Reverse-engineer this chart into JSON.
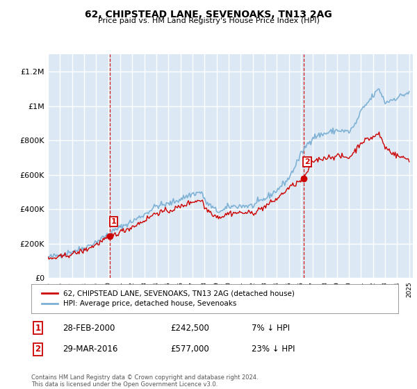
{
  "title": "62, CHIPSTEAD LANE, SEVENOAKS, TN13 2AG",
  "subtitle": "Price paid vs. HM Land Registry's House Price Index (HPI)",
  "ylabel_ticks": [
    "£0",
    "£200K",
    "£400K",
    "£600K",
    "£800K",
    "£1M",
    "£1.2M"
  ],
  "ytick_values": [
    0,
    200000,
    400000,
    600000,
    800000,
    1000000,
    1200000
  ],
  "ylim": [
    0,
    1300000
  ],
  "sale1": {
    "date_label": "28-FEB-2000",
    "price": 242500,
    "hpi_diff": "7% ↓ HPI",
    "marker_year": 2000.15,
    "label": "1"
  },
  "sale2": {
    "date_label": "29-MAR-2016",
    "price": 577000,
    "hpi_diff": "23% ↓ HPI",
    "marker_year": 2016.23,
    "label": "2"
  },
  "legend_line1": "62, CHIPSTEAD LANE, SEVENOAKS, TN13 2AG (detached house)",
  "legend_line2": "HPI: Average price, detached house, Sevenoaks",
  "footer": "Contains HM Land Registry data © Crown copyright and database right 2024.\nThis data is licensed under the Open Government Licence v3.0.",
  "table": [
    {
      "label": "1",
      "date": "28-FEB-2000",
      "price": "£242,500",
      "hpi": "7% ↓ HPI"
    },
    {
      "label": "2",
      "date": "29-MAR-2016",
      "price": "£577,000",
      "hpi": "23% ↓ HPI"
    }
  ],
  "hpi_color": "#7bafd4",
  "sale_color": "#cc0000",
  "bg_color": "#dce9f5",
  "grid_color": "#ffffff",
  "vline_color": "#cc0000",
  "hpi_keypoints_x": [
    1995,
    1996,
    1997,
    1998,
    1999,
    2000.15,
    2001,
    2002,
    2003,
    2004,
    2005,
    2006,
    2007,
    2007.8,
    2008,
    2009,
    2009.5,
    2010,
    2011,
    2012,
    2013,
    2014,
    2015,
    2016.23,
    2017,
    2018,
    2019,
    2020,
    2020.5,
    2021,
    2022,
    2022.5,
    2023,
    2024,
    2025
  ],
  "hpi_keypoints_y": [
    120000,
    135000,
    155000,
    175000,
    210000,
    262000,
    295000,
    330000,
    370000,
    420000,
    430000,
    460000,
    490000,
    500000,
    450000,
    390000,
    390000,
    415000,
    420000,
    420000,
    460000,
    510000,
    580000,
    748000,
    820000,
    840000,
    860000,
    850000,
    890000,
    970000,
    1060000,
    1100000,
    1020000,
    1050000,
    1080000
  ],
  "sale_keypoints_x": [
    1995,
    1996,
    1997,
    1998,
    1999,
    2000.15,
    2001,
    2002,
    2003,
    2004,
    2005,
    2006,
    2007,
    2007.8,
    2008,
    2009,
    2009.5,
    2010,
    2011,
    2012,
    2013,
    2014,
    2015,
    2016.23,
    2017,
    2018,
    2019,
    2020,
    2020.5,
    2021,
    2022,
    2022.5,
    2023,
    2024,
    2025
  ],
  "sale_keypoints_y": [
    110000,
    122000,
    140000,
    160000,
    195000,
    242500,
    268000,
    298000,
    335000,
    380000,
    390000,
    415000,
    445000,
    455000,
    410000,
    358000,
    358000,
    378000,
    380000,
    378000,
    415000,
    460000,
    524000,
    577000,
    680000,
    700000,
    710000,
    700000,
    740000,
    790000,
    820000,
    840000,
    760000,
    710000,
    690000
  ],
  "noise_scale_hpi": 9000,
  "noise_scale_sale": 8000,
  "random_seed": 42
}
